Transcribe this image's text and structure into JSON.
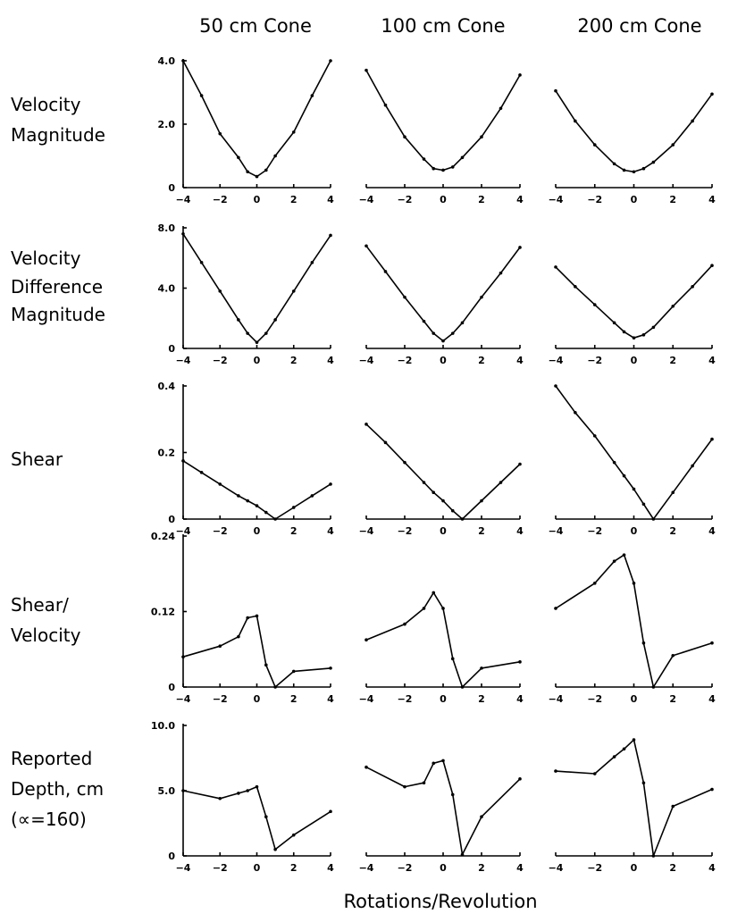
{
  "figure": {
    "column_titles": [
      "50 cm Cone",
      "100 cm Cone",
      "200 cm Cone"
    ],
    "row_labels": [
      [
        "Velocity",
        "Magnitude"
      ],
      [
        "Velocity",
        "Difference",
        "Magnitude"
      ],
      [
        "Shear"
      ],
      [
        "Shear/",
        "Velocity"
      ],
      [
        "Reported",
        "Depth, cm",
        "(∝=160)"
      ]
    ],
    "xlabel": "Rotations/Revolution"
  },
  "chart_data": [
    {
      "type": "line",
      "row": 0,
      "col": 0,
      "xlim": [
        -4,
        4
      ],
      "ylim": [
        0,
        4.0
      ],
      "y_ticks": [
        "0",
        "2.0",
        "4.0"
      ],
      "x_ticks": [
        "-4",
        "-2",
        "0",
        "2",
        "4"
      ],
      "x": [
        -4,
        -3,
        -2,
        -1,
        -0.5,
        0,
        0.5,
        1,
        2,
        3,
        4
      ],
      "y": [
        4.0,
        2.9,
        1.7,
        0.95,
        0.5,
        0.35,
        0.55,
        1.0,
        1.75,
        2.9,
        4.0
      ]
    },
    {
      "type": "line",
      "row": 0,
      "col": 1,
      "xlim": [
        -4,
        4
      ],
      "ylim": [
        0,
        4.0
      ],
      "y_ticks": [],
      "x_ticks": [
        "-4",
        "-2",
        "0",
        "2",
        "4"
      ],
      "x": [
        -4,
        -3,
        -2,
        -1,
        -0.5,
        0,
        0.5,
        1,
        2,
        3,
        4
      ],
      "y": [
        3.7,
        2.6,
        1.6,
        0.9,
        0.6,
        0.55,
        0.65,
        0.95,
        1.6,
        2.5,
        3.55
      ]
    },
    {
      "type": "line",
      "row": 0,
      "col": 2,
      "xlim": [
        -4,
        4
      ],
      "ylim": [
        0,
        4.0
      ],
      "y_ticks": [],
      "x_ticks": [
        "-4",
        "-2",
        "0",
        "2",
        "4"
      ],
      "x": [
        -4,
        -3,
        -2,
        -1,
        -0.5,
        0,
        0.5,
        1,
        2,
        3,
        4
      ],
      "y": [
        3.05,
        2.1,
        1.35,
        0.75,
        0.55,
        0.5,
        0.6,
        0.8,
        1.35,
        2.1,
        2.95
      ]
    },
    {
      "type": "line",
      "row": 1,
      "col": 0,
      "xlim": [
        -4,
        4
      ],
      "ylim": [
        0,
        8.0
      ],
      "y_ticks": [
        "0",
        "4.0",
        "8.0"
      ],
      "x_ticks": [
        "-4",
        "-2",
        "0",
        "2",
        "4"
      ],
      "x": [
        -4,
        -3,
        -2,
        -1,
        -0.5,
        0,
        0.5,
        1,
        2,
        3,
        4
      ],
      "y": [
        7.6,
        5.7,
        3.8,
        1.9,
        1.0,
        0.4,
        1.0,
        1.9,
        3.8,
        5.7,
        7.5
      ]
    },
    {
      "type": "line",
      "row": 1,
      "col": 1,
      "xlim": [
        -4,
        4
      ],
      "ylim": [
        0,
        8.0
      ],
      "y_ticks": [],
      "x_ticks": [
        "-4",
        "-2",
        "0",
        "2",
        "4"
      ],
      "x": [
        -4,
        -3,
        -2,
        -1,
        -0.5,
        0,
        0.5,
        1,
        2,
        3,
        4
      ],
      "y": [
        6.8,
        5.1,
        3.4,
        1.8,
        1.0,
        0.5,
        1.0,
        1.7,
        3.4,
        5.0,
        6.7
      ]
    },
    {
      "type": "line",
      "row": 1,
      "col": 2,
      "xlim": [
        -4,
        4
      ],
      "ylim": [
        0,
        8.0
      ],
      "y_ticks": [],
      "x_ticks": [
        "-4",
        "-2",
        "0",
        "2",
        "4"
      ],
      "x": [
        -4,
        -3,
        -2,
        -1,
        -0.5,
        0,
        0.5,
        1,
        2,
        3,
        4
      ],
      "y": [
        5.4,
        4.1,
        2.9,
        1.7,
        1.1,
        0.7,
        0.9,
        1.4,
        2.8,
        4.1,
        5.5
      ]
    },
    {
      "type": "line",
      "row": 2,
      "col": 0,
      "xlim": [
        -4,
        4
      ],
      "ylim": [
        0,
        0.4
      ],
      "y_ticks": [
        "0",
        "0.2",
        "0.4"
      ],
      "x_ticks": [
        "-4",
        "-2",
        "0",
        "2",
        "4"
      ],
      "x": [
        -4,
        -3,
        -2,
        -1,
        -0.5,
        0,
        0.5,
        1,
        2,
        3,
        4
      ],
      "y": [
        0.175,
        0.14,
        0.105,
        0.07,
        0.055,
        0.04,
        0.02,
        0.0,
        0.035,
        0.07,
        0.105
      ]
    },
    {
      "type": "line",
      "row": 2,
      "col": 1,
      "xlim": [
        -4,
        4
      ],
      "ylim": [
        0,
        0.4
      ],
      "y_ticks": [],
      "x_ticks": [
        "-4",
        "-2",
        "0",
        "2",
        "4"
      ],
      "x": [
        -4,
        -3,
        -2,
        -1,
        -0.5,
        0,
        0.5,
        1,
        2,
        3,
        4
      ],
      "y": [
        0.285,
        0.23,
        0.17,
        0.11,
        0.08,
        0.055,
        0.025,
        0.0,
        0.055,
        0.11,
        0.165
      ]
    },
    {
      "type": "line",
      "row": 2,
      "col": 2,
      "xlim": [
        -4,
        4
      ],
      "ylim": [
        0,
        0.4
      ],
      "y_ticks": [],
      "x_ticks": [
        "-4",
        "-2",
        "0",
        "2",
        "4"
      ],
      "x": [
        -4,
        -3,
        -2,
        -1,
        -0.5,
        0,
        0.5,
        1,
        2,
        3,
        4
      ],
      "y": [
        0.4,
        0.32,
        0.25,
        0.17,
        0.13,
        0.09,
        0.045,
        0.0,
        0.08,
        0.16,
        0.24
      ]
    },
    {
      "type": "line",
      "row": 3,
      "col": 0,
      "xlim": [
        -4,
        4
      ],
      "ylim": [
        0,
        0.24
      ],
      "y_ticks": [
        "0",
        "0.12",
        "0.24"
      ],
      "x_ticks": [
        "-4",
        "-2",
        "0",
        "2",
        "4"
      ],
      "x": [
        -4,
        -2,
        -1,
        -0.5,
        0,
        0.5,
        1,
        2,
        4
      ],
      "y": [
        0.048,
        0.065,
        0.08,
        0.11,
        0.113,
        0.035,
        0.0,
        0.025,
        0.03
      ]
    },
    {
      "type": "line",
      "row": 3,
      "col": 1,
      "xlim": [
        -4,
        4
      ],
      "ylim": [
        0,
        0.24
      ],
      "y_ticks": [],
      "x_ticks": [
        "-4",
        "-2",
        "0",
        "2",
        "4"
      ],
      "x": [
        -4,
        -2,
        -1,
        -0.5,
        0,
        0.5,
        1,
        2,
        4
      ],
      "y": [
        0.075,
        0.1,
        0.125,
        0.15,
        0.125,
        0.045,
        0.0,
        0.03,
        0.04
      ]
    },
    {
      "type": "line",
      "row": 3,
      "col": 2,
      "xlim": [
        -4,
        4
      ],
      "ylim": [
        0,
        0.24
      ],
      "y_ticks": [],
      "x_ticks": [
        "-4",
        "-2",
        "0",
        "2",
        "4"
      ],
      "x": [
        -4,
        -2,
        -1,
        -0.5,
        0,
        0.5,
        1,
        2,
        4
      ],
      "y": [
        0.125,
        0.165,
        0.2,
        0.21,
        0.165,
        0.07,
        0.0,
        0.05,
        0.07
      ]
    },
    {
      "type": "line",
      "row": 4,
      "col": 0,
      "xlim": [
        -4,
        4
      ],
      "ylim": [
        0,
        10.0
      ],
      "y_ticks": [
        "0",
        "5.0",
        "10.0"
      ],
      "x_ticks": [
        "-4",
        "-2",
        "0",
        "2",
        "4"
      ],
      "x": [
        -4,
        -2,
        -1,
        -0.5,
        0,
        0.5,
        1,
        2,
        4
      ],
      "y": [
        5.0,
        4.4,
        4.8,
        5.0,
        5.3,
        3.0,
        0.5,
        1.6,
        3.4
      ]
    },
    {
      "type": "line",
      "row": 4,
      "col": 1,
      "xlim": [
        -4,
        4
      ],
      "ylim": [
        0,
        10.0
      ],
      "y_ticks": [],
      "x_ticks": [
        "-4",
        "-2",
        "0",
        "2",
        "4"
      ],
      "x": [
        -4,
        -2,
        -1,
        -0.5,
        0,
        0.5,
        1,
        2,
        4
      ],
      "y": [
        6.8,
        5.3,
        5.6,
        7.1,
        7.3,
        4.7,
        0.1,
        3.0,
        5.9
      ]
    },
    {
      "type": "line",
      "row": 4,
      "col": 2,
      "xlim": [
        -4,
        4
      ],
      "ylim": [
        0,
        10.0
      ],
      "y_ticks": [],
      "x_ticks": [
        "-4",
        "-2",
        "0",
        "2",
        "4"
      ],
      "x": [
        -4,
        -2,
        -1,
        -0.5,
        0,
        0.5,
        1,
        2,
        4
      ],
      "y": [
        6.5,
        6.3,
        7.6,
        8.2,
        8.9,
        5.6,
        0.0,
        3.8,
        5.1
      ]
    }
  ]
}
